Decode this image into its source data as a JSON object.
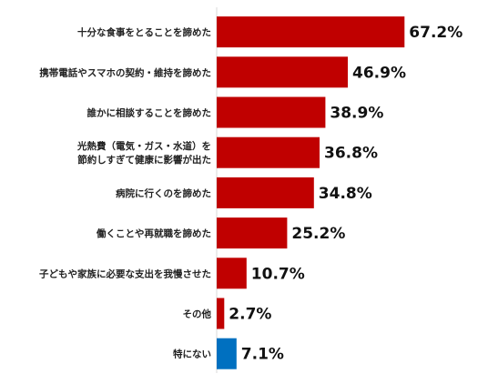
{
  "chart_data": {
    "type": "bar",
    "orientation": "horizontal",
    "categories": [
      [
        "十分な食事をとることを諦めた"
      ],
      [
        "携帯電話やスマホの契約・維持を諦めた"
      ],
      [
        "誰かに相談することを諦めた"
      ],
      [
        "光熱費（電気・ガス・水道）を",
        "節約しすぎて健康に影響が出た"
      ],
      [
        "病院に行くのを諦めた"
      ],
      [
        "働くことや再就職を諦めた"
      ],
      [
        "子どもや家族に必要な支出を我慢させた"
      ],
      [
        "その他"
      ],
      [
        "特にない"
      ]
    ],
    "values": [
      67.2,
      46.9,
      38.9,
      36.8,
      34.8,
      25.2,
      10.7,
      2.7,
      7.1
    ],
    "value_labels": [
      "67.2%",
      "46.9%",
      "38.9%",
      "36.8%",
      "34.8%",
      "25.2%",
      "10.7%",
      "2.7%",
      "7.1%"
    ],
    "bar_colors": [
      "#c00000",
      "#c00000",
      "#c00000",
      "#c00000",
      "#c00000",
      "#c00000",
      "#c00000",
      "#c00000",
      "#0070c0"
    ],
    "xlim": [
      0,
      100
    ],
    "grid": false,
    "legend": "none",
    "title": "",
    "xlabel": "",
    "ylabel": ""
  }
}
